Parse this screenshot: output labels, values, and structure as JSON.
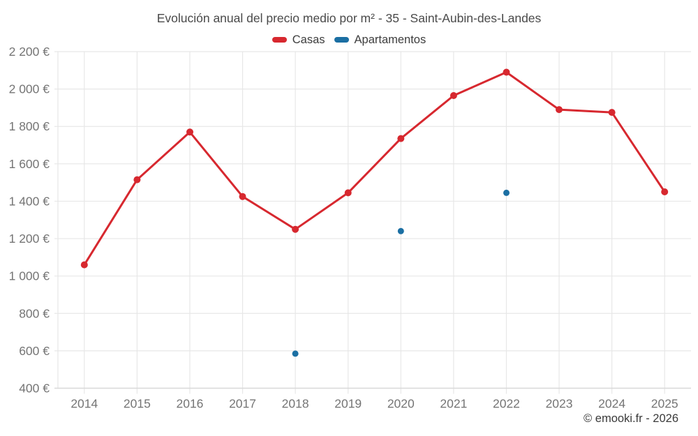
{
  "chart_data": {
    "type": "line",
    "title": "Evolución anual del precio medio por m² - 35 - Saint-Aubin-des-Landes",
    "xlabel": "",
    "ylabel": "",
    "x": [
      "2014",
      "2015",
      "2016",
      "2017",
      "2018",
      "2019",
      "2020",
      "2021",
      "2022",
      "2023",
      "2024",
      "2025"
    ],
    "series": [
      {
        "name": "Casas",
        "color": "#d7282f",
        "draw_line": true,
        "marker_radius": 5,
        "values": [
          1060,
          1515,
          1770,
          1425,
          1250,
          1445,
          1735,
          1965,
          2090,
          1890,
          1875,
          1450
        ]
      },
      {
        "name": "Apartamentos",
        "color": "#1b6fa3",
        "draw_line": false,
        "marker_radius": 4.5,
        "values": [
          null,
          null,
          null,
          null,
          585,
          null,
          1240,
          null,
          1445,
          null,
          null,
          null
        ]
      }
    ],
    "ylim": [
      400,
      2200
    ],
    "ytick_step": 200,
    "y_ticks": [
      {
        "value": 400,
        "label": "400 €"
      },
      {
        "value": 600,
        "label": "600 €"
      },
      {
        "value": 800,
        "label": "800 €"
      },
      {
        "value": 1000,
        "label": "1 000 €"
      },
      {
        "value": 1200,
        "label": "1 200 €"
      },
      {
        "value": 1400,
        "label": "1 400 €"
      },
      {
        "value": 1600,
        "label": "1 600 €"
      },
      {
        "value": 1800,
        "label": "1 800 €"
      },
      {
        "value": 2000,
        "label": "2 000 €"
      },
      {
        "value": 2200,
        "label": "2 200 €"
      }
    ],
    "grid": true,
    "legend_position": "top",
    "colors": {
      "grid": "#e7e7e7",
      "axis": "#d9d9d9",
      "tick_label": "#757575",
      "title": "#4a4a4a",
      "legend_text": "#3d3d3d"
    }
  },
  "footer": {
    "copyright": "© emooki.fr - 2026"
  }
}
